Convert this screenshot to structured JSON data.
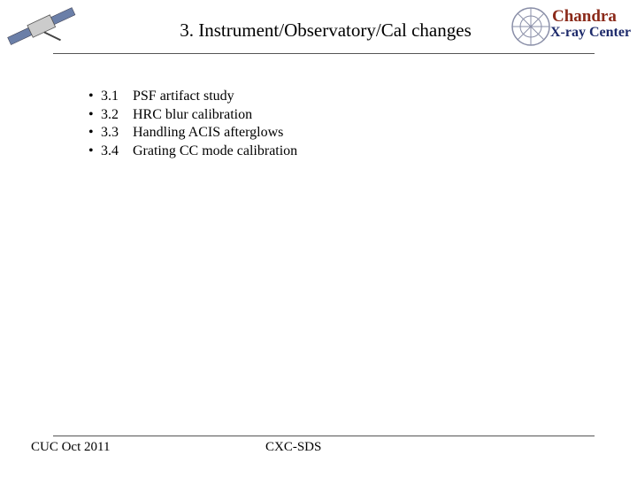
{
  "header": {
    "title": "3. Instrument/Observatory/Cal changes",
    "logo": {
      "name": "Chandra",
      "subtitle": "X-ray Center"
    }
  },
  "items": [
    {
      "bullet": "•",
      "number": "3.1",
      "text": "PSF artifact study"
    },
    {
      "bullet": "•",
      "number": "3.2",
      "text": "HRC blur calibration"
    },
    {
      "bullet": "•",
      "number": "3.3",
      "text": "Handling ACIS afterglows"
    },
    {
      "bullet": "•",
      "number": "3.4",
      "text": "Grating CC mode calibration"
    }
  ],
  "footer": {
    "left": "CUC Oct 2011",
    "right": "CXC-SDS"
  }
}
